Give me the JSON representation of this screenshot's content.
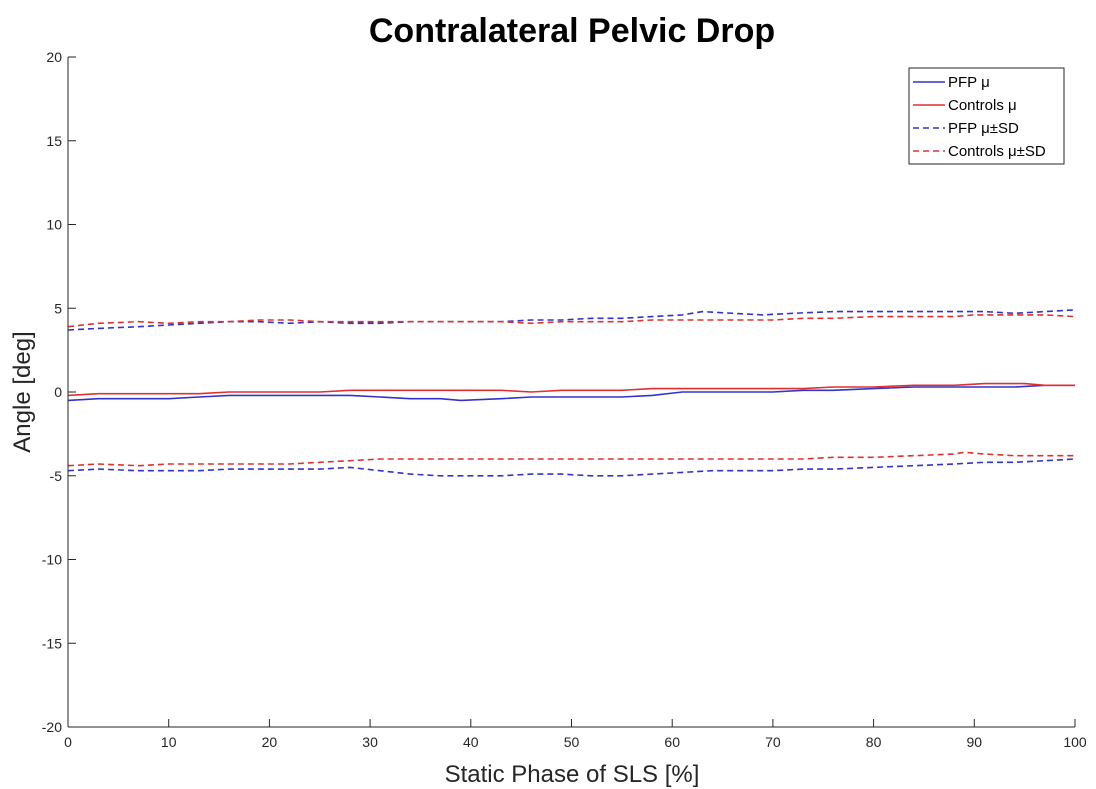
{
  "chart_data": {
    "type": "line",
    "title": "Contralateral Pelvic Drop",
    "xlabel": "Static Phase of SLS [%]",
    "ylabel": "Angle [deg]",
    "xlim": [
      0,
      100
    ],
    "ylim": [
      -20,
      20
    ],
    "xticks": [
      "0",
      "10",
      "20",
      "30",
      "40",
      "50",
      "60",
      "70",
      "80",
      "90",
      "100"
    ],
    "yticks": [
      "20",
      "15",
      "10",
      "5",
      "0",
      "-5",
      "-10",
      "-15",
      "-20"
    ],
    "grid": false,
    "legend_position": "top-right",
    "series": [
      {
        "name": "PFP μ",
        "color": "#3333cc",
        "style": "solid",
        "x": [
          0,
          3,
          7,
          10,
          13,
          16,
          19,
          22,
          25,
          28,
          31,
          34,
          37,
          39,
          43,
          46,
          49,
          52,
          55,
          58,
          61,
          64,
          67,
          70,
          73,
          76,
          80,
          84,
          88,
          91,
          94,
          97,
          100
        ],
        "y": [
          -0.5,
          -0.4,
          -0.4,
          -0.4,
          -0.3,
          -0.2,
          -0.2,
          -0.2,
          -0.2,
          -0.2,
          -0.3,
          -0.4,
          -0.4,
          -0.5,
          -0.4,
          -0.3,
          -0.3,
          -0.3,
          -0.3,
          -0.2,
          0.0,
          0.0,
          0.0,
          0.0,
          0.1,
          0.1,
          0.2,
          0.3,
          0.3,
          0.3,
          0.3,
          0.4,
          0.4
        ]
      },
      {
        "name": "Controls μ",
        "color": "#e03030",
        "style": "solid",
        "x": [
          0,
          3,
          7,
          10,
          13,
          16,
          19,
          22,
          25,
          28,
          31,
          34,
          37,
          40,
          43,
          46,
          49,
          52,
          55,
          58,
          61,
          64,
          67,
          70,
          73,
          76,
          80,
          84,
          88,
          91,
          94,
          95,
          97,
          100
        ],
        "y": [
          -0.2,
          -0.1,
          -0.1,
          -0.1,
          -0.1,
          0.0,
          0.0,
          0.0,
          0.0,
          0.1,
          0.1,
          0.1,
          0.1,
          0.1,
          0.1,
          0.0,
          0.1,
          0.1,
          0.1,
          0.2,
          0.2,
          0.2,
          0.2,
          0.2,
          0.2,
          0.3,
          0.3,
          0.4,
          0.4,
          0.5,
          0.5,
          0.5,
          0.4,
          0.4
        ]
      },
      {
        "name": "PFP μ±SD",
        "color": "#3333cc",
        "style": "dashed",
        "x": [
          0,
          3,
          7,
          10,
          13,
          16,
          19,
          22,
          25,
          28,
          31,
          34,
          37,
          40,
          43,
          46,
          49,
          52,
          55,
          58,
          61,
          63,
          66,
          69,
          72,
          76,
          80,
          84,
          88,
          91,
          94,
          97,
          100
        ],
        "y": [
          3.7,
          3.8,
          3.9,
          4.0,
          4.1,
          4.2,
          4.2,
          4.1,
          4.2,
          4.1,
          4.1,
          4.2,
          4.2,
          4.2,
          4.2,
          4.3,
          4.3,
          4.4,
          4.4,
          4.5,
          4.6,
          4.8,
          4.7,
          4.6,
          4.7,
          4.8,
          4.8,
          4.8,
          4.8,
          4.8,
          4.7,
          4.8,
          4.9
        ]
      },
      {
        "name": "",
        "color": "#3333cc",
        "style": "dashed",
        "x": [
          0,
          3,
          7,
          10,
          13,
          16,
          19,
          22,
          25,
          28,
          31,
          34,
          37,
          40,
          43,
          46,
          49,
          52,
          55,
          58,
          61,
          64,
          67,
          70,
          73,
          76,
          80,
          84,
          88,
          91,
          94,
          97,
          100
        ],
        "y": [
          -4.7,
          -4.6,
          -4.7,
          -4.7,
          -4.7,
          -4.6,
          -4.6,
          -4.6,
          -4.6,
          -4.5,
          -4.7,
          -4.9,
          -5.0,
          -5.0,
          -5.0,
          -4.9,
          -4.9,
          -5.0,
          -5.0,
          -4.9,
          -4.8,
          -4.7,
          -4.7,
          -4.7,
          -4.6,
          -4.6,
          -4.5,
          -4.4,
          -4.3,
          -4.2,
          -4.2,
          -4.1,
          -4.0
        ]
      },
      {
        "name": "Controls μ±SD",
        "color": "#e03030",
        "style": "dashed",
        "x": [
          0,
          3,
          7,
          10,
          13,
          16,
          19,
          22,
          25,
          28,
          31,
          34,
          37,
          40,
          43,
          46,
          49,
          52,
          55,
          58,
          61,
          64,
          67,
          70,
          73,
          76,
          80,
          84,
          88,
          90,
          92,
          94,
          97,
          100
        ],
        "y": [
          3.9,
          4.1,
          4.2,
          4.1,
          4.2,
          4.2,
          4.3,
          4.3,
          4.2,
          4.2,
          4.2,
          4.2,
          4.2,
          4.2,
          4.2,
          4.1,
          4.2,
          4.2,
          4.2,
          4.3,
          4.3,
          4.3,
          4.3,
          4.3,
          4.4,
          4.4,
          4.5,
          4.5,
          4.5,
          4.6,
          4.6,
          4.6,
          4.6,
          4.5
        ]
      },
      {
        "name": "",
        "color": "#e03030",
        "style": "dashed",
        "x": [
          0,
          3,
          7,
          10,
          13,
          16,
          19,
          22,
          25,
          28,
          31,
          34,
          37,
          40,
          43,
          46,
          49,
          52,
          55,
          58,
          61,
          64,
          67,
          70,
          73,
          76,
          80,
          84,
          88,
          89,
          91,
          94,
          97,
          100
        ],
        "y": [
          -4.4,
          -4.3,
          -4.4,
          -4.3,
          -4.3,
          -4.3,
          -4.3,
          -4.3,
          -4.2,
          -4.1,
          -4.0,
          -4.0,
          -4.0,
          -4.0,
          -4.0,
          -4.0,
          -4.0,
          -4.0,
          -4.0,
          -4.0,
          -4.0,
          -4.0,
          -4.0,
          -4.0,
          -4.0,
          -3.9,
          -3.9,
          -3.8,
          -3.7,
          -3.6,
          -3.7,
          -3.8,
          -3.8,
          -3.8
        ]
      }
    ]
  }
}
